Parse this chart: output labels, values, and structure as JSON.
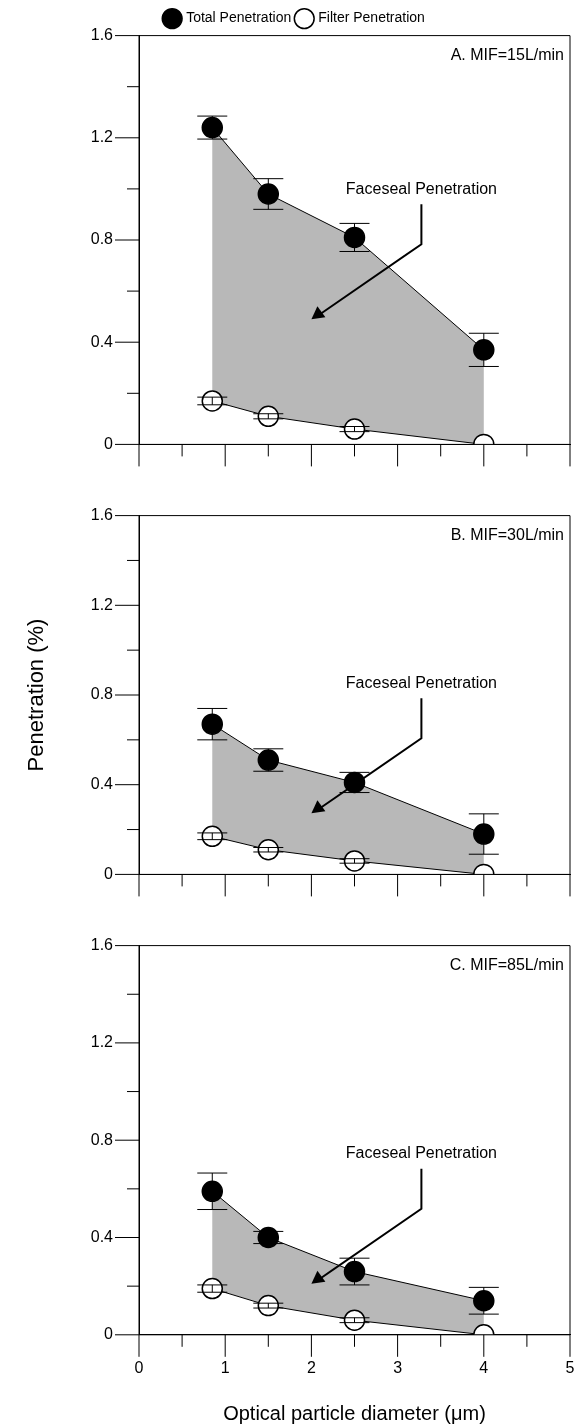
{
  "chart_data": [
    {
      "type": "line",
      "x": [
        0.85,
        1.5,
        2.5,
        4
      ],
      "legend": "top",
      "marker": "circle",
      "tick_labels": "y",
      "series": [
        {
          "name": "Total Penetration",
          "color": "#000000",
          "values": [
            1.24,
            0.98,
            0.81,
            0.37
          ],
          "errors": [
            0.045,
            0.06,
            0.055,
            0.065
          ],
          "lower": [
            0.17,
            0.11,
            0.06,
            0
          ],
          "upper": [
            1.24,
            0.98,
            0.81,
            0.37
          ]
        },
        {
          "name": "Filter Penetration",
          "color": "#ffffff",
          "values": [
            0.17,
            0.11,
            0.06,
            0
          ],
          "errors": [
            0.015,
            0.01,
            0.01,
            null
          ]
        }
      ],
      "xlim": [
        0,
        5
      ],
      "xticks": [
        0,
        {
          "value": 0.5,
          "label": null
        },
        1,
        {
          "value": 1.5,
          "label": null
        },
        2,
        {
          "value": 2.5,
          "label": null
        },
        3,
        {
          "value": 3.5,
          "label": null
        },
        4,
        {
          "value": 4.5,
          "label": null
        },
        5
      ],
      "ylim": [
        0,
        1.6
      ],
      "yticks": [
        0,
        {
          "value": 0.2,
          "label": null
        },
        0.4,
        {
          "value": 0.6,
          "label": null
        },
        0.8,
        {
          "value": 1.0,
          "label": null
        },
        1.2,
        {
          "value": 1.4,
          "label": null
        },
        1.6
      ],
      "annotations": [
        "A. MIF=15L/min",
        "Faceseal Penetration"
      ]
    },
    {
      "type": "line",
      "x": [
        0.85,
        1.5,
        2.5,
        4
      ],
      "marker": "circle",
      "tick_labels": "y",
      "ylabel": "Penetration (%)",
      "series": [
        {
          "color": "#000000",
          "values": [
            0.67,
            0.51,
            0.41,
            0.18
          ],
          "errors": [
            0.07,
            0.05,
            0.045,
            0.09
          ],
          "lower": [
            0.17,
            0.11,
            0.06,
            0
          ],
          "upper": [
            0.67,
            0.51,
            0.41,
            0.18
          ]
        },
        {
          "color": "#ffffff",
          "values": [
            0.17,
            0.11,
            0.06,
            0
          ],
          "errors": [
            0.015,
            0.01,
            0.01,
            null
          ]
        }
      ],
      "xlim": [
        0,
        5
      ],
      "xticks": [
        0,
        {
          "value": 0.5,
          "label": null
        },
        1,
        {
          "value": 1.5,
          "label": null
        },
        2,
        {
          "value": 2.5,
          "label": null
        },
        3,
        {
          "value": 3.5,
          "label": null
        },
        4,
        {
          "value": 4.5,
          "label": null
        },
        5
      ],
      "ylim": [
        0,
        1.6
      ],
      "yticks": [
        0,
        {
          "value": 0.2,
          "label": null
        },
        0.4,
        {
          "value": 0.6,
          "label": null
        },
        0.8,
        {
          "value": 1.0,
          "label": null
        },
        1.2,
        {
          "value": 1.4,
          "label": null
        },
        1.6
      ],
      "annotations": [
        "B. MIF=30L/min",
        "Faceseal Penetration"
      ]
    },
    {
      "type": "line",
      "x": [
        0.85,
        1.5,
        2.5,
        4
      ],
      "marker": "circle",
      "xlabel": "Optical particle diameter (μm)",
      "series": [
        {
          "color": "#000000",
          "values": [
            0.59,
            0.4,
            0.26,
            0.14
          ],
          "errors": [
            0.075,
            0.025,
            0.055,
            0.055
          ],
          "lower": [
            0.19,
            0.12,
            0.06,
            0
          ],
          "upper": [
            0.59,
            0.4,
            0.26,
            0.14
          ]
        },
        {
          "color": "#ffffff",
          "values": [
            0.19,
            0.12,
            0.06,
            0
          ],
          "errors": [
            0.015,
            0.01,
            0.01,
            null
          ]
        }
      ],
      "xlim": [
        0,
        5
      ],
      "xticks": [
        0,
        {
          "value": 0.5,
          "label": null
        },
        1,
        {
          "value": 1.5,
          "label": null
        },
        2,
        {
          "value": 2.5,
          "label": null
        },
        3,
        {
          "value": 3.5,
          "label": null
        },
        4,
        {
          "value": 4.5,
          "label": null
        },
        5
      ],
      "ylim": [
        0,
        1.6
      ],
      "yticks": [
        0,
        {
          "value": 0.2,
          "label": null
        },
        0.4,
        {
          "value": 0.6,
          "label": null
        },
        0.8,
        {
          "value": 1.0,
          "label": null
        },
        1.2,
        {
          "value": 1.4,
          "label": null
        },
        1.6
      ],
      "annotations": [
        "C. MIF=85L/min",
        "Faceseal Penetration"
      ]
    }
  ]
}
